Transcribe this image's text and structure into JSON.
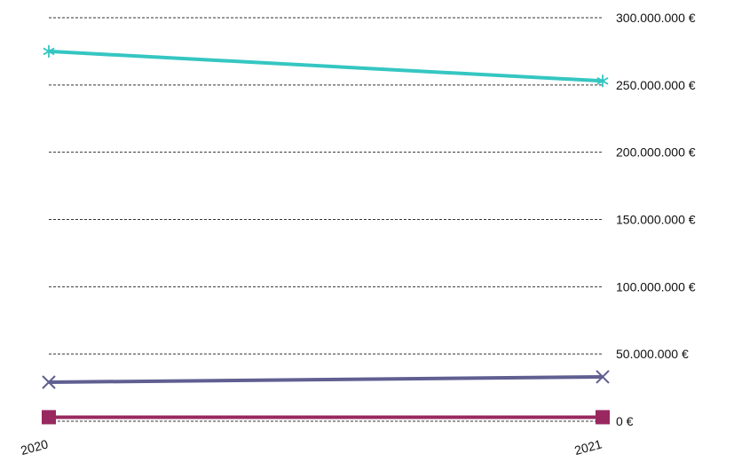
{
  "chart_data": {
    "type": "line",
    "title": "",
    "xlabel": "",
    "ylabel": "",
    "x": [
      "2020",
      "2021"
    ],
    "y_ticks": [
      0,
      50000000,
      100000000,
      150000000,
      200000000,
      250000000,
      300000000
    ],
    "y_tick_labels": [
      "0 €",
      "50.000.000 €",
      "100.000.000 €",
      "150.000.000 €",
      "200.000.000 €",
      "250.000.000 €",
      "300.000.000 €"
    ],
    "ylim": [
      0,
      300000000
    ],
    "grid": true,
    "y_axis_side": "right",
    "series": [
      {
        "values": [
          275000000,
          253000000
        ],
        "color": "#35c6c2",
        "marker": "asterisk"
      },
      {
        "values": [
          29000000,
          33000000
        ],
        "color": "#5f5f91",
        "marker": "x"
      },
      {
        "values": [
          3000000,
          3000000
        ],
        "color": "#98285f",
        "marker": "square"
      }
    ]
  }
}
